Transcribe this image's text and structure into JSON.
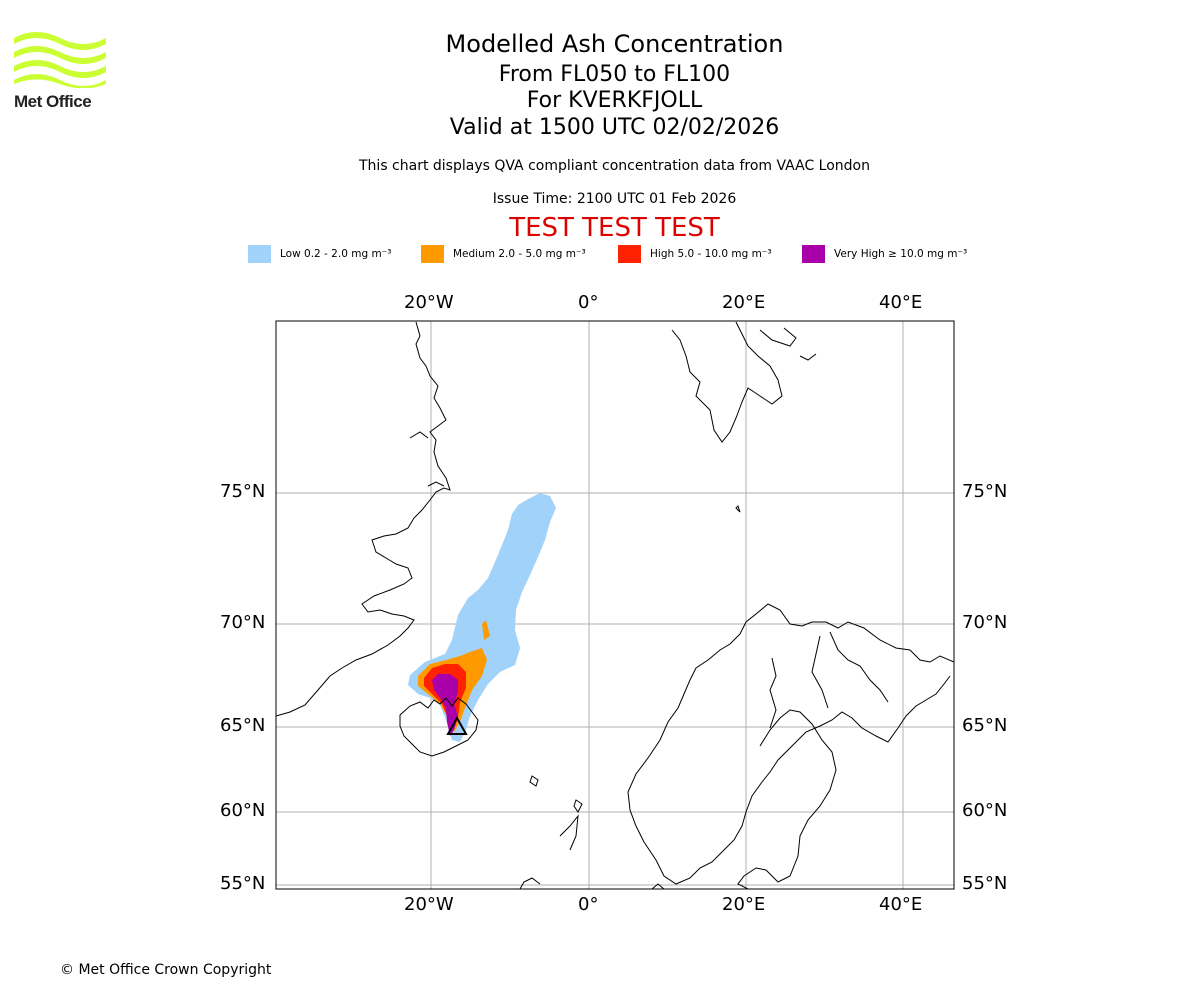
{
  "logo": {
    "text": "Met Office",
    "color": "#ccff33"
  },
  "header": {
    "title": "Modelled Ash Concentration",
    "levels": "From FL050 to FL100",
    "volcano": "For KVERKFJOLL",
    "valid": "Valid at 1500 UTC 02/02/2026",
    "description": "This chart displays QVA compliant concentration data from VAAC London",
    "issue_time": "Issue Time: 2100 UTC 01 Feb 2026",
    "test_banner": "TEST TEST TEST",
    "test_color": "#dd0000"
  },
  "legend": [
    {
      "label": "Low 0.2 - 2.0 mg m⁻³",
      "color": "#a0d2fa"
    },
    {
      "label": "Medium 2.0 - 5.0 mg m⁻³",
      "color": "#ff9900"
    },
    {
      "label": "High 5.0 - 10.0 mg m⁻³",
      "color": "#ff2200"
    },
    {
      "label": "Very High  ≥  10.0 mg m⁻³",
      "color": "#aa00aa"
    }
  ],
  "map": {
    "lon_ticks": [
      "20°W",
      "0°",
      "20°E",
      "40°E"
    ],
    "lat_ticks": [
      "75°N",
      "70°N",
      "65°N",
      "60°N",
      "55°N"
    ]
  },
  "footer": {
    "copyright": "© Met Office Crown Copyright"
  }
}
